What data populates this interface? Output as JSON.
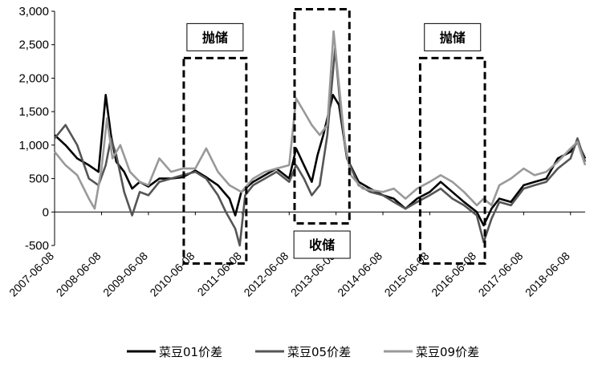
{
  "chart_data": {
    "type": "line",
    "title": "",
    "xlabel": "",
    "ylabel": "",
    "ylim": [
      -500,
      3000
    ],
    "yticks": [
      3000,
      2500,
      2000,
      1500,
      1000,
      500,
      0,
      -500
    ],
    "ytick_labels": [
      "3,000",
      "2,500",
      "2,000",
      "1,500",
      "1,000",
      "500",
      "0",
      "-500"
    ],
    "xrange": [
      "2007-06-08",
      "2018-09-30"
    ],
    "xtick_labels": [
      "2007-06-08",
      "2008-06-08",
      "2009-06-08",
      "2010-06-08",
      "2011-06-08",
      "2012-06-08",
      "2013-06-08",
      "2014-06-08",
      "2015-06-08",
      "2016-06-08",
      "2017-06-08",
      "2018-06-08"
    ],
    "grid": false,
    "legend_position": "bottom",
    "series": [
      {
        "name": "菜豆01价差",
        "color": "#000000",
        "points": [
          [
            "2007-06-08",
            1150
          ],
          [
            "2007-09-01",
            1000
          ],
          [
            "2007-12-01",
            800
          ],
          [
            "2008-03-01",
            700
          ],
          [
            "2008-05-15",
            600
          ],
          [
            "2008-07-10",
            1750
          ],
          [
            "2008-08-20",
            1150
          ],
          [
            "2008-10-01",
            750
          ],
          [
            "2008-12-01",
            600
          ],
          [
            "2009-02-01",
            350
          ],
          [
            "2009-04-01",
            450
          ],
          [
            "2009-06-08",
            380
          ],
          [
            "2009-09-01",
            500
          ],
          [
            "2009-12-01",
            500
          ],
          [
            "2010-03-01",
            520
          ],
          [
            "2010-06-08",
            620
          ],
          [
            "2010-09-01",
            520
          ],
          [
            "2010-12-01",
            400
          ],
          [
            "2011-03-01",
            200
          ],
          [
            "2011-04-15",
            -50
          ],
          [
            "2011-06-01",
            300
          ],
          [
            "2011-09-01",
            450
          ],
          [
            "2011-12-01",
            550
          ],
          [
            "2012-03-01",
            650
          ],
          [
            "2012-06-08",
            500
          ],
          [
            "2012-08-01",
            950
          ],
          [
            "2012-10-01",
            700
          ],
          [
            "2012-12-01",
            450
          ],
          [
            "2013-01-15",
            850
          ],
          [
            "2013-03-01",
            1150
          ],
          [
            "2013-05-15",
            1750
          ],
          [
            "2013-07-01",
            1600
          ],
          [
            "2013-09-01",
            800
          ],
          [
            "2013-12-01",
            450
          ],
          [
            "2014-03-01",
            350
          ],
          [
            "2014-06-08",
            250
          ],
          [
            "2014-09-01",
            200
          ],
          [
            "2014-12-01",
            50
          ],
          [
            "2015-03-01",
            200
          ],
          [
            "2015-06-08",
            300
          ],
          [
            "2015-09-01",
            450
          ],
          [
            "2015-12-01",
            300
          ],
          [
            "2016-03-01",
            150
          ],
          [
            "2016-06-08",
            0
          ],
          [
            "2016-08-01",
            -200
          ],
          [
            "2016-10-01",
            50
          ],
          [
            "2016-12-01",
            200
          ],
          [
            "2017-03-01",
            150
          ],
          [
            "2017-06-08",
            400
          ],
          [
            "2017-09-01",
            450
          ],
          [
            "2017-12-01",
            500
          ],
          [
            "2018-03-01",
            800
          ],
          [
            "2018-06-08",
            900
          ],
          [
            "2018-08-01",
            1050
          ],
          [
            "2018-09-30",
            800
          ]
        ]
      },
      {
        "name": "菜豆05价差",
        "color": "#555555",
        "points": [
          [
            "2007-06-08",
            1100
          ],
          [
            "2007-09-01",
            1300
          ],
          [
            "2007-12-01",
            1000
          ],
          [
            "2008-03-01",
            500
          ],
          [
            "2008-05-15",
            400
          ],
          [
            "2008-07-10",
            700
          ],
          [
            "2008-08-20",
            1100
          ],
          [
            "2008-10-01",
            850
          ],
          [
            "2008-12-01",
            300
          ],
          [
            "2009-02-01",
            -50
          ],
          [
            "2009-04-01",
            300
          ],
          [
            "2009-06-08",
            250
          ],
          [
            "2009-09-01",
            450
          ],
          [
            "2009-12-01",
            500
          ],
          [
            "2010-03-01",
            550
          ],
          [
            "2010-06-08",
            600
          ],
          [
            "2010-09-01",
            500
          ],
          [
            "2010-12-01",
            250
          ],
          [
            "2011-02-01",
            0
          ],
          [
            "2011-04-15",
            -250
          ],
          [
            "2011-05-20",
            -500
          ],
          [
            "2011-07-01",
            250
          ],
          [
            "2011-09-01",
            400
          ],
          [
            "2011-12-01",
            500
          ],
          [
            "2012-03-01",
            600
          ],
          [
            "2012-06-08",
            450
          ],
          [
            "2012-08-01",
            700
          ],
          [
            "2012-10-01",
            500
          ],
          [
            "2012-12-01",
            250
          ],
          [
            "2013-02-01",
            400
          ],
          [
            "2013-04-01",
            1150
          ],
          [
            "2013-06-01",
            2450
          ],
          [
            "2013-07-15",
            1500
          ],
          [
            "2013-09-01",
            800
          ],
          [
            "2013-12-01",
            400
          ],
          [
            "2014-03-01",
            300
          ],
          [
            "2014-06-08",
            250
          ],
          [
            "2014-09-01",
            150
          ],
          [
            "2014-12-01",
            50
          ],
          [
            "2015-03-01",
            150
          ],
          [
            "2015-06-08",
            250
          ],
          [
            "2015-09-01",
            350
          ],
          [
            "2015-12-01",
            200
          ],
          [
            "2016-03-01",
            100
          ],
          [
            "2016-06-08",
            -50
          ],
          [
            "2016-08-01",
            -450
          ],
          [
            "2016-10-01",
            -100
          ],
          [
            "2016-12-01",
            150
          ],
          [
            "2017-03-01",
            100
          ],
          [
            "2017-06-08",
            350
          ],
          [
            "2017-09-01",
            400
          ],
          [
            "2017-12-01",
            450
          ],
          [
            "2018-03-01",
            650
          ],
          [
            "2018-06-08",
            800
          ],
          [
            "2018-08-01",
            1100
          ],
          [
            "2018-09-30",
            750
          ]
        ]
      },
      {
        "name": "菜豆09价差",
        "color": "#999999",
        "points": [
          [
            "2007-06-08",
            900
          ],
          [
            "2007-09-01",
            700
          ],
          [
            "2007-12-01",
            550
          ],
          [
            "2008-03-01",
            200
          ],
          [
            "2008-04-15",
            50
          ],
          [
            "2008-06-08",
            650
          ],
          [
            "2008-07-20",
            1400
          ],
          [
            "2008-09-01",
            800
          ],
          [
            "2008-11-01",
            1000
          ],
          [
            "2009-01-15",
            600
          ],
          [
            "2009-04-01",
            450
          ],
          [
            "2009-06-08",
            400
          ],
          [
            "2009-09-01",
            800
          ],
          [
            "2009-12-01",
            600
          ],
          [
            "2010-03-01",
            650
          ],
          [
            "2010-06-08",
            650
          ],
          [
            "2010-09-01",
            950
          ],
          [
            "2010-12-01",
            600
          ],
          [
            "2011-03-01",
            400
          ],
          [
            "2011-06-01",
            300
          ],
          [
            "2011-09-01",
            500
          ],
          [
            "2011-12-01",
            600
          ],
          [
            "2012-03-01",
            650
          ],
          [
            "2012-06-08",
            700
          ],
          [
            "2012-08-01",
            1700
          ],
          [
            "2012-10-01",
            1500
          ],
          [
            "2012-12-01",
            1300
          ],
          [
            "2013-02-01",
            1150
          ],
          [
            "2013-04-01",
            1300
          ],
          [
            "2013-05-20",
            2700
          ],
          [
            "2013-07-01",
            1900
          ],
          [
            "2013-08-15",
            1050
          ],
          [
            "2013-10-01",
            550
          ],
          [
            "2014-01-01",
            350
          ],
          [
            "2014-06-08",
            300
          ],
          [
            "2014-09-01",
            350
          ],
          [
            "2014-12-01",
            200
          ],
          [
            "2015-03-01",
            350
          ],
          [
            "2015-06-08",
            450
          ],
          [
            "2015-09-01",
            550
          ],
          [
            "2015-12-01",
            450
          ],
          [
            "2016-03-01",
            300
          ],
          [
            "2016-06-08",
            100
          ],
          [
            "2016-08-01",
            200
          ],
          [
            "2016-10-01",
            100
          ],
          [
            "2016-12-01",
            400
          ],
          [
            "2017-03-01",
            500
          ],
          [
            "2017-06-08",
            650
          ],
          [
            "2017-09-01",
            550
          ],
          [
            "2017-12-01",
            600
          ],
          [
            "2018-03-01",
            750
          ],
          [
            "2018-06-08",
            950
          ],
          [
            "2018-08-01",
            1050
          ],
          [
            "2018-09-30",
            700
          ]
        ]
      }
    ],
    "annotations": [
      {
        "text": "抛储",
        "box": [
          "2010-03-10",
          "2011-07-10",
          -770,
          2300
        ],
        "label_y": 2600
      },
      {
        "text": "收储",
        "box": [
          "2012-07-20",
          "2013-09-20",
          -170,
          3030
        ],
        "label_y": -500
      },
      {
        "text": "抛储",
        "box": [
          "2015-03-25",
          "2016-08-10",
          -770,
          2300
        ],
        "label_y": 2600
      }
    ]
  }
}
